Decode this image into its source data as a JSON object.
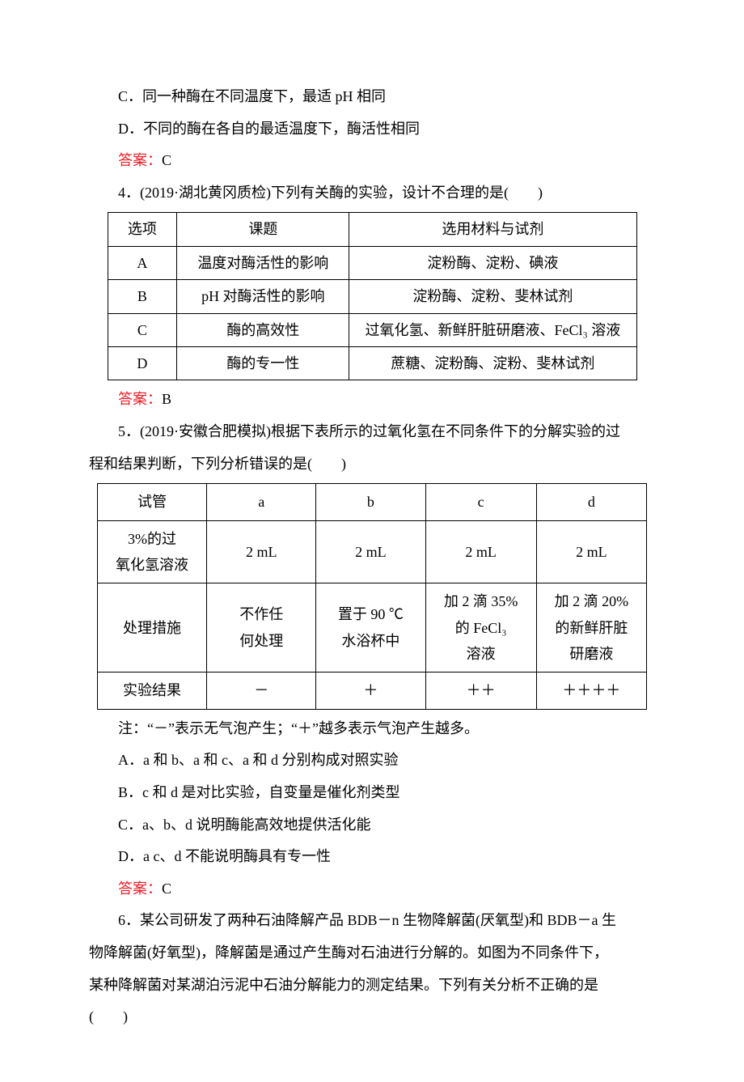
{
  "colors": {
    "text": "#000000",
    "answer": "#ed1c24",
    "background": "#ffffff",
    "border": "#000000"
  },
  "typography": {
    "body_fontsize_pt": 14,
    "line_height": 2.2,
    "font_family": "SimSun"
  },
  "lines": {
    "optC": "C．同一种酶在不同温度下，最适 pH 相同",
    "optD": "D．不同的酶在各自的最适温度下，酶活性相同",
    "ans3_label": "答案：",
    "ans3_val": "C",
    "q4": "4．(2019·湖北黄冈质检)下列有关酶的实验，设计不合理的是(　　)",
    "ans4_label": "答案：",
    "ans4_val": "B",
    "q5a": "5．(2019·安徽合肥模拟)根据下表所示的过氧化氢在不同条件下的分解实验的过",
    "q5b": "程和结果判断，下列分析错误的是(　　)",
    "note": "注：“－”表示无气泡产生；“＋”越多表示气泡产生越多。",
    "q5optA": "A．a 和 b、a 和 c、a 和 d 分别构成对照实验",
    "q5optB": "B．c 和 d 是对比实验，自变量是催化剂类型",
    "q5optC": "C．a、b、d 说明酶能高效地提供活化能",
    "q5optD": "D．a c、d 不能说明酶具有专一性",
    "ans5_label": "答案：",
    "ans5_val": "C",
    "q6a": "6．某公司研发了两种石油降解产品 BDB－n 生物降解菌(厌氧型)和 BDB－a 生",
    "q6b": "物降解菌(好氧型)，降解菌是通过产生酶对石油进行分解的。如图为不同条件下，",
    "q6c": "某种降解菌对某湖泊污泥中石油分解能力的测定结果。下列有关分析不正确的是",
    "q6d": "(　　)"
  },
  "table1": {
    "header": [
      "选项",
      "课题",
      "选用材料与试剂"
    ],
    "rows": [
      [
        "A",
        "温度对酶活性的影响",
        "淀粉酶、淀粉、碘液"
      ],
      [
        "B",
        "pH 对酶活性的影响",
        "淀粉酶、淀粉、斐林试剂"
      ],
      [
        "C",
        "酶的高效性",
        "过氧化氢、新鲜肝脏研磨液、FeCl₃ 溶液"
      ],
      [
        "D",
        "酶的专一性",
        "蔗糖、淀粉酶、淀粉、斐林试剂"
      ]
    ]
  },
  "table2": {
    "header": [
      "试管",
      "a",
      "b",
      "c",
      "d"
    ],
    "row1_label_l1": "3%的过",
    "row1_label_l2": "氧化氢溶液",
    "row1_vals": [
      "2 mL",
      "2 mL",
      "2 mL",
      "2 mL"
    ],
    "row2_label": "处理措施",
    "row2_c2_l1": "不作任",
    "row2_c2_l2": "何处理",
    "row2_c3_l1": "置于 90 ℃",
    "row2_c3_l2": "水浴杯中",
    "row2_c4_l1": "加 2 滴 35%",
    "row2_c4_l2": "的 FeCl₃",
    "row2_c4_l3": "溶液",
    "row2_c5_l1": "加 2 滴 20%",
    "row2_c5_l2": "的新鲜肝脏",
    "row2_c5_l3": "研磨液",
    "row3_label": "实验结果",
    "row3_vals": [
      "－",
      "＋",
      "＋＋",
      "＋＋＋＋"
    ]
  }
}
